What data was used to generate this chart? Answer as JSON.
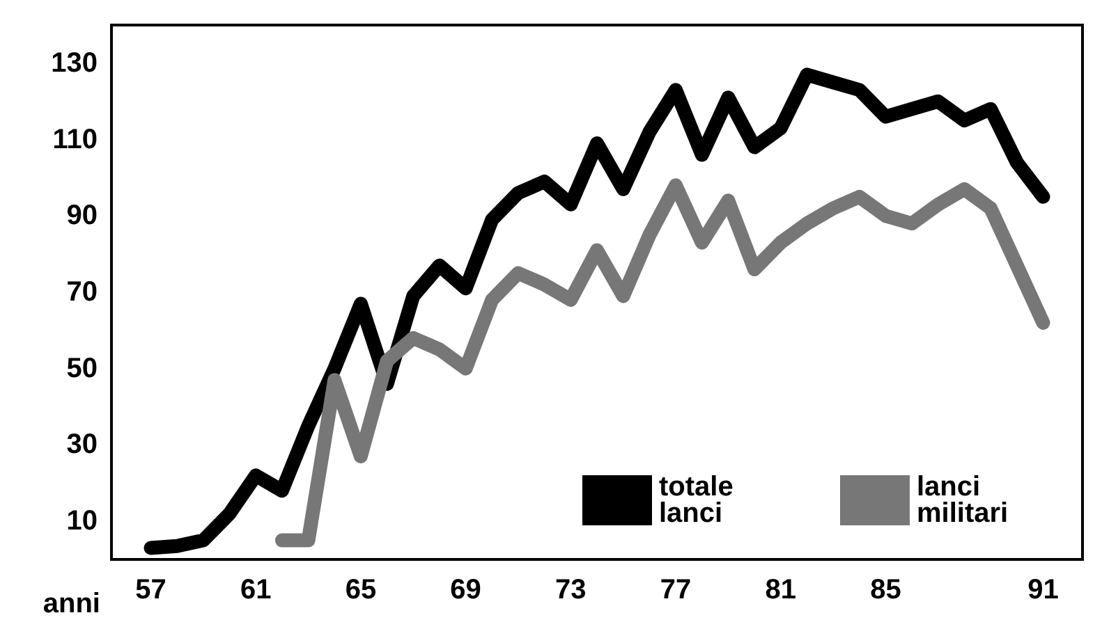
{
  "chart_data": {
    "type": "line",
    "xlabel": "anni",
    "xlim": [
      55.5,
      92.5
    ],
    "ylim": [
      0,
      140
    ],
    "xticks": [
      57,
      61,
      65,
      69,
      73,
      77,
      81,
      85,
      91
    ],
    "yticks": [
      10,
      30,
      50,
      70,
      90,
      110,
      130
    ],
    "grid": false,
    "legend": "bottom right",
    "marker": "none",
    "line_style": "solid",
    "x": [
      57,
      58,
      59,
      60,
      61,
      62,
      63,
      64,
      65,
      66,
      67,
      68,
      69,
      70,
      71,
      72,
      73,
      74,
      75,
      76,
      77,
      78,
      79,
      80,
      81,
      82,
      83,
      84,
      85,
      86,
      87,
      88,
      89,
      90,
      91
    ],
    "series": [
      {
        "name": "totale lanci",
        "color": "#000000",
        "values": [
          3,
          3.5,
          5,
          12,
          22,
          18,
          35,
          50,
          67,
          46,
          69,
          77,
          71,
          89,
          96,
          99,
          93,
          109,
          97,
          112,
          123,
          106,
          121,
          108,
          113,
          127,
          125,
          123,
          116,
          118,
          120,
          115,
          118,
          104,
          95
        ]
      },
      {
        "name": "lanci militari",
        "color": "#777777",
        "values": [
          null,
          null,
          null,
          null,
          null,
          5,
          5,
          47,
          27,
          52,
          58,
          55,
          50,
          68,
          75,
          72,
          68,
          81,
          69,
          85,
          98,
          83,
          94,
          76,
          83,
          88,
          92,
          95,
          90,
          88,
          93,
          97,
          92,
          77,
          62
        ]
      }
    ]
  }
}
